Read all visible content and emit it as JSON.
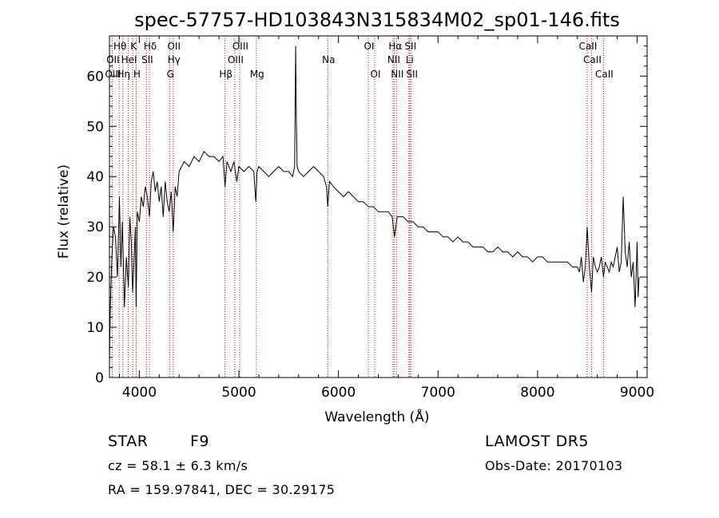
{
  "chart_data": {
    "type": "line",
    "title": "spec-57757-HD103843N315834M02_sp01-146.fits",
    "xlabel": "Wavelength (Å)",
    "ylabel": "Flux (relative)",
    "xlim": [
      3700,
      9100
    ],
    "ylim": [
      0,
      68
    ],
    "x_ticks": [
      4000,
      5000,
      6000,
      7000,
      8000,
      9000
    ],
    "x_tick_labels": [
      "4000",
      "5000",
      "6000",
      "7000",
      "8000",
      "9000"
    ],
    "y_ticks": [
      0,
      10,
      20,
      30,
      40,
      50,
      60
    ],
    "y_tick_labels": [
      "0",
      "10",
      "20",
      "30",
      "40",
      "50",
      "60"
    ],
    "grid": false,
    "series": [
      {
        "x": [
          3700,
          3710,
          3725,
          3740,
          3760,
          3780,
          3800,
          3815,
          3830,
          3850,
          3870,
          3890,
          3905,
          3920,
          3933,
          3945,
          3960,
          3968,
          3980,
          4000,
          4020,
          4040,
          4060,
          4080,
          4102,
          4120,
          4140,
          4160,
          4180,
          4200,
          4220,
          4240,
          4260,
          4280,
          4300,
          4320,
          4340,
          4360,
          4380,
          4400,
          4450,
          4500,
          4550,
          4600,
          4650,
          4700,
          4750,
          4800,
          4840,
          4861,
          4880,
          4900,
          4920,
          4950,
          4980,
          5000,
          5050,
          5100,
          5150,
          5170,
          5183,
          5200,
          5250,
          5300,
          5350,
          5400,
          5450,
          5500,
          5540,
          5560,
          5570,
          5577,
          5585,
          5600,
          5650,
          5700,
          5750,
          5800,
          5850,
          5880,
          5893,
          5910,
          5950,
          6000,
          6050,
          6100,
          6150,
          6200,
          6250,
          6300,
          6350,
          6400,
          6450,
          6500,
          6540,
          6563,
          6590,
          6620,
          6650,
          6700,
          6750,
          6800,
          6850,
          6900,
          6950,
          7000,
          7050,
          7100,
          7150,
          7200,
          7250,
          7300,
          7350,
          7400,
          7450,
          7500,
          7550,
          7600,
          7650,
          7700,
          7750,
          7800,
          7850,
          7880,
          7900,
          7950,
          8000,
          8050,
          8100,
          8150,
          8200,
          8250,
          8300,
          8350,
          8400,
          8420,
          8440,
          8460,
          8480,
          8498,
          8520,
          8542,
          8560,
          8580,
          8600,
          8620,
          8640,
          8662,
          8680,
          8700,
          8720,
          8740,
          8760,
          8780,
          8800,
          8820,
          8840,
          8860,
          8880,
          8900,
          8920,
          8940,
          8960,
          8980,
          9000,
          9010,
          9020
        ],
        "y": [
          3,
          15,
          24,
          30,
          28,
          20,
          36,
          22,
          31,
          14,
          24,
          18,
          32,
          27,
          17,
          22,
          30,
          14,
          33,
          31,
          36,
          34,
          38,
          36,
          32,
          39,
          41,
          37,
          39,
          35,
          38,
          32,
          39,
          35,
          33,
          37,
          29,
          38,
          36,
          41,
          43,
          42,
          44,
          43,
          45,
          44,
          44,
          43,
          44,
          38,
          43,
          42,
          41,
          43,
          39,
          42,
          41,
          42,
          41,
          35,
          41,
          42,
          41,
          40,
          41,
          42,
          41,
          41,
          40,
          42,
          66,
          52,
          42,
          41,
          40,
          41,
          42,
          41,
          40,
          38,
          34,
          39,
          38,
          37,
          36,
          37,
          36,
          35,
          35,
          34,
          34,
          33,
          33,
          33,
          32,
          28,
          32,
          32,
          32,
          31,
          31,
          30,
          30,
          29,
          29,
          29,
          28,
          28,
          27,
          28,
          27,
          27,
          26,
          26,
          26,
          25,
          25,
          26,
          25,
          25,
          24,
          25,
          24,
          24,
          24,
          23,
          24,
          24,
          23,
          23,
          23,
          23,
          23,
          22,
          22,
          21,
          24,
          19,
          22,
          30,
          22,
          17,
          24,
          22,
          21,
          22,
          24,
          20,
          23,
          22,
          21,
          23,
          22,
          24,
          26,
          21,
          23,
          36,
          25,
          22,
          27,
          20,
          23,
          14,
          27,
          16,
          20
        ]
      }
    ],
    "line_markers": [
      {
        "name": "Hθ",
        "x": 3798,
        "row": 1
      },
      {
        "name": "K",
        "x": 3934,
        "row": 1
      },
      {
        "name": "Hδ",
        "x": 4102,
        "row": 1
      },
      {
        "name": "OII",
        "x": 4340,
        "row": 1
      },
      {
        "name": "OIII",
        "x": 5007,
        "row": 1
      },
      {
        "name": "OI",
        "x": 6300,
        "row": 1
      },
      {
        "name": "Hα",
        "x": 6563,
        "row": 1
      },
      {
        "name": "SII",
        "x": 6716,
        "row": 1
      },
      {
        "name": "CaII",
        "x": 8498,
        "row": 1
      },
      {
        "name": "OII",
        "x": 3727,
        "row": 2
      },
      {
        "name": "HeI",
        "x": 3889,
        "row": 2
      },
      {
        "name": "SII",
        "x": 4072,
        "row": 2
      },
      {
        "name": "Hγ",
        "x": 4340,
        "row": 2
      },
      {
        "name": "OIII",
        "x": 4959,
        "row": 2
      },
      {
        "name": "Na",
        "x": 5893,
        "row": 2
      },
      {
        "name": "NII",
        "x": 6548,
        "row": 2
      },
      {
        "name": "Li",
        "x": 6708,
        "row": 2
      },
      {
        "name": "CaII",
        "x": 8542,
        "row": 2
      },
      {
        "name": "OIII",
        "x": 3727,
        "row": 3
      },
      {
        "name": "Hη",
        "x": 3835,
        "row": 3
      },
      {
        "name": "H",
        "x": 3968,
        "row": 3
      },
      {
        "name": "G",
        "x": 4304,
        "row": 3
      },
      {
        "name": "Hβ",
        "x": 4861,
        "row": 3
      },
      {
        "name": "Mg",
        "x": 5175,
        "row": 3
      },
      {
        "name": "OI",
        "x": 6364,
        "row": 3
      },
      {
        "name": "NII",
        "x": 6583,
        "row": 3
      },
      {
        "name": "SII",
        "x": 6731,
        "row": 3
      },
      {
        "name": "CaII",
        "x": 8662,
        "row": 3
      }
    ],
    "line_marker_positions": [
      3727,
      3798,
      3835,
      3889,
      3934,
      3968,
      4072,
      4102,
      4304,
      4340,
      4861,
      4959,
      5007,
      5175,
      5893,
      6300,
      6364,
      6548,
      6563,
      6583,
      6708,
      6716,
      6731,
      8498,
      8542,
      8662
    ]
  },
  "info": {
    "object_class": "STAR",
    "subclass": "F9",
    "survey": "LAMOST DR5",
    "redshift": "cz = 58.1 ± 6.3 km/s",
    "obs_date": "Obs-Date: 20170103",
    "coords": "RA = 159.97841, DEC =  30.29175"
  },
  "colors": {
    "spectrum": "#000000",
    "line_marker": "#cc0000",
    "axes": "#000000"
  }
}
